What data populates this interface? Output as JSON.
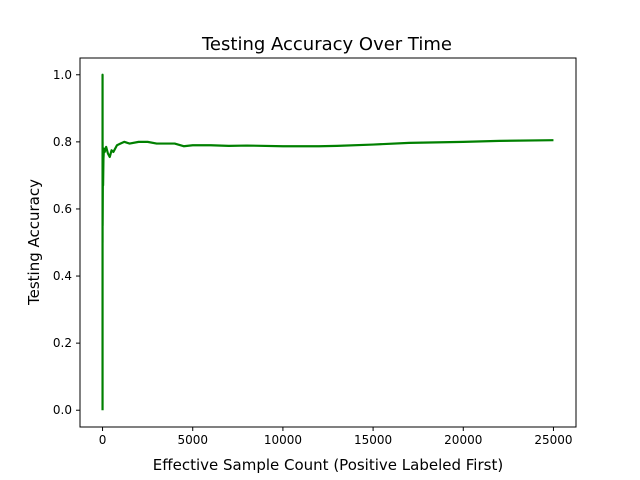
{
  "chart_data": {
    "type": "line",
    "title": "Testing Accuracy Over Time",
    "xlabel": "Effective Sample Count (Positive Labeled First)",
    "ylabel": "Testing Accuracy",
    "xlim": [
      -1250,
      26250
    ],
    "ylim": [
      -0.05,
      1.05
    ],
    "xticks": [
      0,
      5000,
      10000,
      15000,
      20000,
      25000
    ],
    "xtick_labels": [
      "0",
      "5000",
      "10000",
      "15000",
      "20000",
      "25000"
    ],
    "yticks": [
      0.0,
      0.2,
      0.4,
      0.6,
      0.8,
      1.0
    ],
    "ytick_labels": [
      "0.0",
      "0.2",
      "0.4",
      "0.6",
      "0.8",
      "1.0"
    ],
    "grid": false,
    "legend": false,
    "series": [
      {
        "color": "#008000",
        "x": [
          0,
          1,
          2,
          3,
          5,
          10,
          20,
          30,
          50,
          80,
          120,
          200,
          300,
          400,
          500,
          600,
          800,
          1000,
          1200,
          1500,
          2000,
          2500,
          3000,
          4000,
          4500,
          5000,
          6000,
          7000,
          8000,
          10000,
          12000,
          13000,
          15000,
          17000,
          20000,
          22000,
          25000
        ],
        "y": [
          0.0,
          1.0,
          0.5,
          0.8,
          0.55,
          0.6,
          0.72,
          0.67,
          0.75,
          0.78,
          0.77,
          0.785,
          0.765,
          0.755,
          0.775,
          0.77,
          0.79,
          0.795,
          0.8,
          0.795,
          0.8,
          0.8,
          0.795,
          0.795,
          0.787,
          0.79,
          0.79,
          0.788,
          0.789,
          0.787,
          0.787,
          0.788,
          0.792,
          0.797,
          0.8,
          0.803,
          0.805
        ]
      }
    ]
  }
}
